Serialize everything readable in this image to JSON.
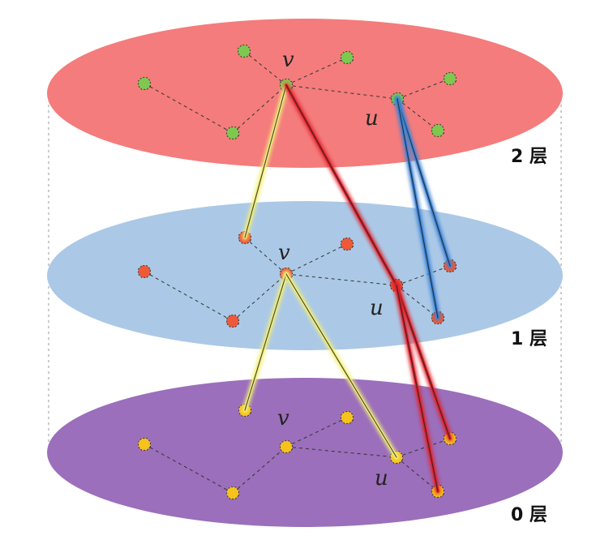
{
  "layers": [
    {
      "id": "L2",
      "label": "2 层",
      "color": "#f47c7c",
      "node_color": "#7ec850"
    },
    {
      "id": "L1",
      "label": "1 层",
      "color": "#abc9e6",
      "node_color": "#ec5a3a"
    },
    {
      "id": "L0",
      "label": "0 层",
      "color": "#9b6fbb",
      "node_color": "#f6c21c"
    }
  ],
  "node_labels": {
    "v": "v",
    "u": "u"
  },
  "colors": {
    "yellow_link": "#f3f07a",
    "red_link": "#e0202a",
    "blue_link": "#3b82d6",
    "link_core": "#222222"
  }
}
